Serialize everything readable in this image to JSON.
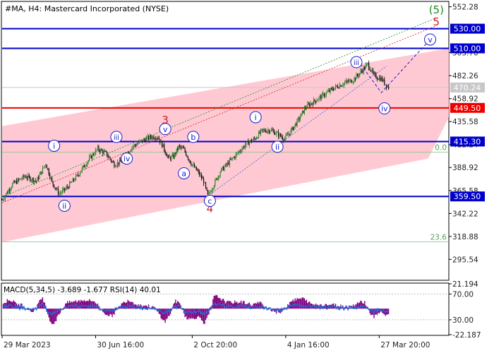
{
  "title": "#MA, H4:  Mastercard Incorporated (NYSE)",
  "chart_data": {
    "type": "candlestick",
    "title": "#MA, H4:  Mastercard Incorporated (NYSE)",
    "price_axis": {
      "ylim": [
        275,
        557
      ],
      "ticks": [
        "552.28",
        "505.70",
        "482.26",
        "458.92",
        "435.58",
        "412.24",
        "388.92",
        "365.58",
        "342.22",
        "318.88",
        "295.54"
      ],
      "tick_values": [
        552.28,
        505.7,
        482.26,
        458.92,
        435.58,
        412.24,
        388.92,
        365.58,
        342.22,
        318.88,
        295.54
      ]
    },
    "time_axis": {
      "labels": [
        "29 Mar 2023",
        "30 Jun 16:00",
        "2 Oct 20:00",
        "4 Jan 16:00",
        "27 Mar 20:00"
      ],
      "label_index": [
        0,
        90,
        183,
        273,
        363
      ],
      "bars": 430
    },
    "levels": [
      {
        "value": 530.0,
        "label": "530.00",
        "color": "#0000cc"
      },
      {
        "value": 510.0,
        "label": "510.00",
        "color": "#0000cc"
      },
      {
        "value": 449.5,
        "label": "449.50",
        "color": "#ee0000"
      },
      {
        "value": 415.3,
        "label": "415.30",
        "color": "#0000cc"
      },
      {
        "value": 359.5,
        "label": "359.50",
        "color": "#0000cc"
      }
    ],
    "current_price": {
      "value": 470.24,
      "label": "470.24"
    },
    "fib_levels": [
      {
        "value": 404.5,
        "label": "0.0"
      },
      {
        "value": 313.5,
        "label": "23.6"
      }
    ],
    "price_path": [
      [
        0,
        356
      ],
      [
        10,
        372
      ],
      [
        22,
        380
      ],
      [
        33,
        375
      ],
      [
        42,
        393
      ],
      [
        48,
        374
      ],
      [
        55,
        362
      ],
      [
        62,
        368
      ],
      [
        72,
        380
      ],
      [
        82,
        395
      ],
      [
        92,
        408
      ],
      [
        100,
        403
      ],
      [
        108,
        392
      ],
      [
        115,
        395
      ],
      [
        125,
        410
      ],
      [
        135,
        416
      ],
      [
        143,
        420
      ],
      [
        150,
        420
      ],
      [
        155,
        410
      ],
      [
        160,
        398
      ],
      [
        165,
        400
      ],
      [
        170,
        410
      ],
      [
        175,
        407
      ],
      [
        182,
        393
      ],
      [
        188,
        385
      ],
      [
        194,
        375
      ],
      [
        198,
        360
      ],
      [
        203,
        370
      ],
      [
        210,
        385
      ],
      [
        220,
        396
      ],
      [
        228,
        405
      ],
      [
        235,
        413
      ],
      [
        243,
        418
      ],
      [
        250,
        426
      ],
      [
        258,
        427
      ],
      [
        265,
        423
      ],
      [
        272,
        418
      ],
      [
        278,
        426
      ],
      [
        285,
        437
      ],
      [
        292,
        450
      ],
      [
        300,
        456
      ],
      [
        310,
        463
      ],
      [
        320,
        470
      ],
      [
        330,
        475
      ],
      [
        338,
        478
      ],
      [
        346,
        487
      ],
      [
        352,
        494
      ],
      [
        358,
        482
      ],
      [
        365,
        479
      ],
      [
        372,
        470
      ]
    ],
    "channel": {
      "fill": "#ffc0cb",
      "upper": [
        [
          0,
          431
        ],
        [
          430,
          510
        ]
      ],
      "lower": [
        [
          0,
          313
        ],
        [
          410,
          398
        ]
      ],
      "extend_right": [
        [
          410,
          398
        ],
        [
          430,
          440
        ]
      ]
    },
    "wave_labels": [
      {
        "text": "(5)",
        "color": "#228b22",
        "bar": 418,
        "price": 549
      },
      {
        "text": "5",
        "color": "#cc2222",
        "bar": 418,
        "price": 537
      },
      {
        "text": "3",
        "color": "#cc2222",
        "bar": 157,
        "price": 437
      },
      {
        "text": "4",
        "color": "#cc2222",
        "bar": 200,
        "price": 347
      },
      {
        "text": "i",
        "color": "#1a1acc",
        "bar": 50,
        "price": 411
      },
      {
        "text": "ii",
        "color": "#1a1acc",
        "bar": 60,
        "price": 350
      },
      {
        "text": "iii",
        "color": "#1a1acc",
        "bar": 110,
        "price": 420
      },
      {
        "text": "iv",
        "color": "#1a1acc",
        "bar": 120,
        "price": 398
      },
      {
        "text": "v",
        "color": "#1a1acc",
        "bar": 157,
        "price": 428
      },
      {
        "text": "a",
        "color": "#1a1acc",
        "bar": 175,
        "price": 383
      },
      {
        "text": "b",
        "color": "#1a1acc",
        "bar": 184,
        "price": 420
      },
      {
        "text": "c",
        "color": "#1a1acc",
        "bar": 200,
        "price": 355
      },
      {
        "text": "i",
        "color": "#1a1acc",
        "bar": 244,
        "price": 440
      },
      {
        "text": "ii",
        "color": "#1a1acc",
        "bar": 265,
        "price": 410
      },
      {
        "text": "iii",
        "color": "#1a1acc",
        "bar": 341,
        "price": 496
      },
      {
        "text": "iv",
        "color": "#1a1acc",
        "bar": 368,
        "price": 449
      },
      {
        "text": "v",
        "color": "#1a1acc",
        "bar": 412,
        "price": 519
      }
    ],
    "projection": [
      [
        345,
        494
      ],
      [
        365,
        465
      ],
      [
        412,
        519
      ]
    ],
    "dotted_lines": [
      {
        "color": "#228b22",
        "from": [
          0,
          359
        ],
        "to": [
          418,
          541
        ]
      },
      {
        "color": "#cc2222",
        "from": [
          0,
          353
        ],
        "to": [
          418,
          533
        ]
      },
      {
        "color": "#3a5fcd",
        "from": [
          198,
          360
        ],
        "to": [
          370,
          492
        ]
      }
    ],
    "indicator": {
      "label": "MACD(5,34,5) -3.689 -1.677 RSI(14) 40.01",
      "ticks": [
        "21.194",
        "70.00",
        "30.00",
        "-22.187"
      ],
      "histogram_color": "#800080",
      "rsi_color": "#1e6fd9"
    }
  }
}
